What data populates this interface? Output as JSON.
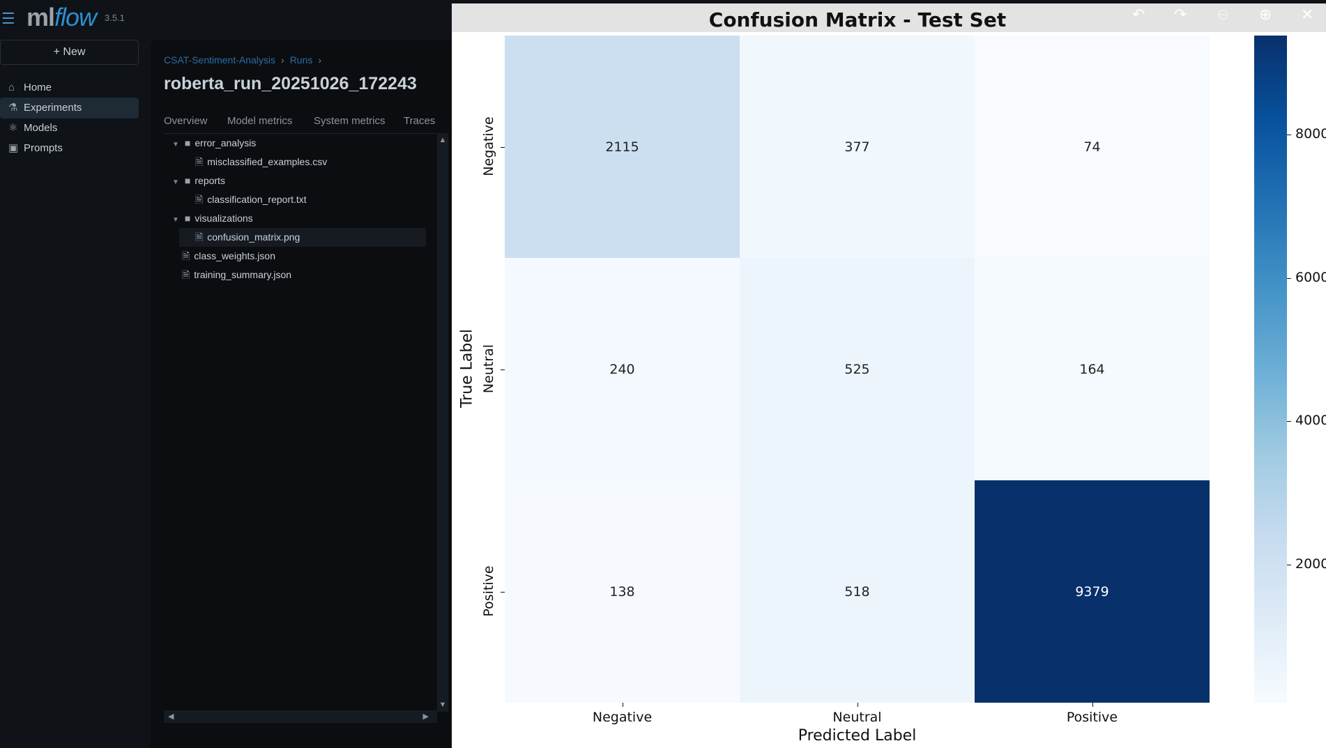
{
  "app": {
    "logo": "mlflow",
    "version": "3.5.1",
    "new_label": "New"
  },
  "sidebar": {
    "items": [
      {
        "label": "Home",
        "icon": "home-icon"
      },
      {
        "label": "Experiments",
        "icon": "flask-icon",
        "active": true
      },
      {
        "label": "Models",
        "icon": "models-icon"
      },
      {
        "label": "Prompts",
        "icon": "prompts-icon"
      }
    ]
  },
  "breadcrumb": [
    "CSAT-Sentiment-Analysis",
    "Runs"
  ],
  "run_title": "roberta_run_20251026_172243",
  "tabs": [
    "Overview",
    "Model metrics",
    "System metrics",
    "Traces"
  ],
  "tree": [
    {
      "label": "error_analysis",
      "type": "folder",
      "depth": 0
    },
    {
      "label": "misclassified_examples.csv",
      "type": "file",
      "depth": 1
    },
    {
      "label": "reports",
      "type": "folder",
      "depth": 0
    },
    {
      "label": "classification_report.txt",
      "type": "file",
      "depth": 1
    },
    {
      "label": "visualizations",
      "type": "folder",
      "depth": 0
    },
    {
      "label": "confusion_matrix.png",
      "type": "image",
      "depth": 1,
      "selected": true
    },
    {
      "label": "class_weights.json",
      "type": "file",
      "depth": 0
    },
    {
      "label": "training_summary.json",
      "type": "file",
      "depth": 0
    }
  ],
  "viewer_tools": [
    "undo-icon",
    "redo-icon",
    "zoom-out-icon",
    "zoom-in-icon",
    "close-icon"
  ],
  "chart_data": {
    "type": "heatmap",
    "title": "Confusion Matrix - Test Set",
    "xlabel": "Predicted Label",
    "ylabel": "True Label",
    "x_categories": [
      "Negative",
      "Neutral",
      "Positive"
    ],
    "y_categories": [
      "Negative",
      "Neutral",
      "Positive"
    ],
    "values": [
      [
        2115,
        377,
        74
      ],
      [
        240,
        525,
        164
      ],
      [
        138,
        518,
        9379
      ]
    ],
    "colormap": "Blues",
    "colorbar": {
      "ticks": [
        "2000",
        "4000",
        "6000",
        "8000"
      ],
      "range": [
        74,
        9379
      ]
    }
  }
}
